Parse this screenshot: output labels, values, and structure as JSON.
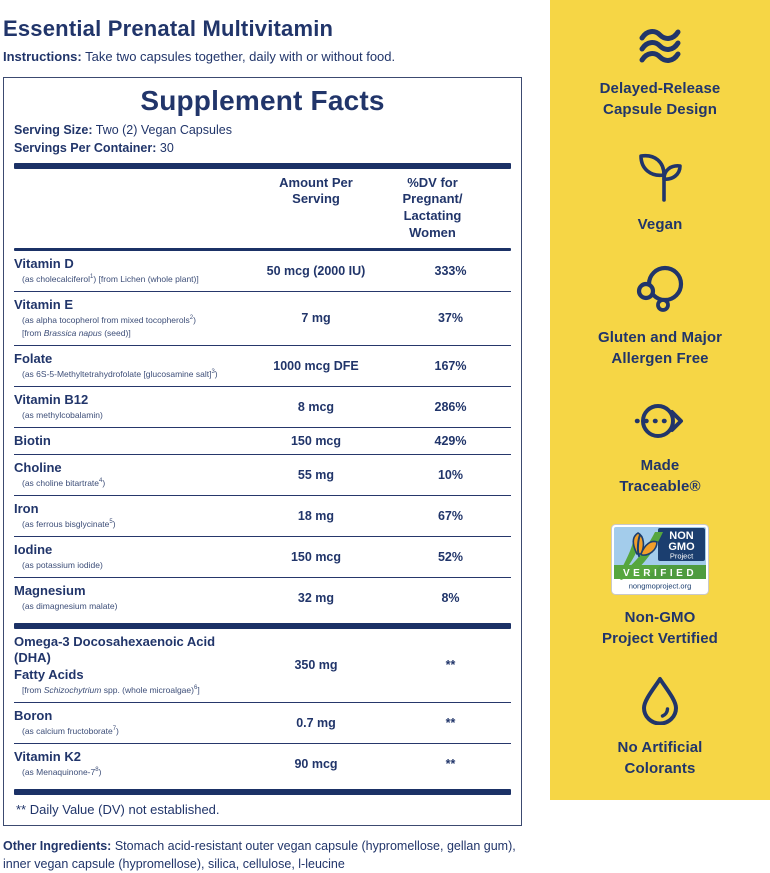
{
  "colors": {
    "navy": "#21356A",
    "yellow": "#F6D645",
    "sub_text": "#3D4E78"
  },
  "header": {
    "title": "Essential Prenatal Multivitamin",
    "instructions_label": "Instructions:",
    "instructions_text": "Take two capsules together, daily with or without food."
  },
  "facts": {
    "title": "Supplement Facts",
    "serving_size_label": "Serving Size:",
    "serving_size_value": "Two (2) Vegan Capsules",
    "servings_label": "Servings Per Container:",
    "servings_value": "30",
    "col_amount": "Amount Per\nServing",
    "col_dv": "%DV for Pregnant/\nLactating Women",
    "rows_main": [
      {
        "name": "Vitamin D",
        "sub": "(as cholecalciferol<sup>1</sup>) [from Lichen (whole plant)]",
        "amount": "50 mcg (2000 IU)",
        "dv": "333%"
      },
      {
        "name": "Vitamin E",
        "sub": "(as alpha tocopherol from mixed tocopherols<sup>2</sup>)<br>[from <i>Brassica napus</i> (seed)]",
        "amount": "7 mg",
        "dv": "37%"
      },
      {
        "name": "Folate",
        "sub": "(as 6S-5-Methyltetrahydrofolate [glucosamine salt]<sup>3</sup>)",
        "amount": "1000 mcg DFE",
        "dv": "167%"
      },
      {
        "name": "Vitamin B12",
        "sub": "(as methylcobalamin)",
        "amount": "8 mcg",
        "dv": "286%"
      },
      {
        "name": "Biotin",
        "sub": "",
        "amount": "150 mcg",
        "dv": "429%"
      },
      {
        "name": "Choline",
        "sub": "(as choline bitartrate<sup>4</sup>)",
        "amount": "55 mg",
        "dv": "10%"
      },
      {
        "name": "Iron",
        "sub": "(as ferrous bisglycinate<sup>5</sup>)",
        "amount": "18 mg",
        "dv": "67%"
      },
      {
        "name": "Iodine",
        "sub": "(as potassium iodide)",
        "amount": "150 mcg",
        "dv": "52%"
      },
      {
        "name": "Magnesium",
        "sub": "(as dimagnesium malate)",
        "amount": "32 mg",
        "dv": "8%"
      }
    ],
    "rows_secondary": [
      {
        "name": "Omega-3 Docosahexaenoic Acid (DHA)<br>Fatty Acids",
        "sub": "[from <i>Schizochytrium</i> spp. (whole microalgae)<sup>6</sup>]",
        "amount": "350 mg",
        "dv": "**"
      },
      {
        "name": "Boron",
        "sub": "(as calcium fructoborate<sup>7</sup>)",
        "amount": "0.7 mg",
        "dv": "**"
      },
      {
        "name": "Vitamin K2",
        "sub": "(as Menaquinone-7<sup>8</sup>)",
        "amount": "90 mcg",
        "dv": "**"
      }
    ],
    "footnote": "** Daily Value (DV) not established."
  },
  "other_ingredients": {
    "label": "Other Ingredients:",
    "text": "Stomach acid-resistant outer vegan capsule (hypromellose, gellan gum), inner vegan capsule (hypromellose),  silica, cellulose, l-leucine"
  },
  "sidebar": {
    "items": [
      {
        "icon": "waves-icon",
        "lines": [
          "Delayed-Release",
          "Capsule Design"
        ]
      },
      {
        "icon": "sprout-icon",
        "lines": [
          "Vegan"
        ]
      },
      {
        "icon": "molecule-icon",
        "lines": [
          "Gluten and Major",
          "Allergen Free"
        ]
      },
      {
        "icon": "traceable-arrow-icon",
        "lines": [
          "Made",
          "Traceable®"
        ]
      },
      {
        "icon": "nongmo-verified-badge",
        "lines": [
          "Non-GMO",
          "Project Vertified"
        ]
      },
      {
        "icon": "droplet-icon",
        "lines": [
          "No Artificial",
          "Colorants"
        ]
      }
    ],
    "badge": {
      "non": "NON",
      "gmo": "GMO",
      "project": "Project",
      "verified": "VERIFIED",
      "url": "nongmoproject.org"
    }
  }
}
